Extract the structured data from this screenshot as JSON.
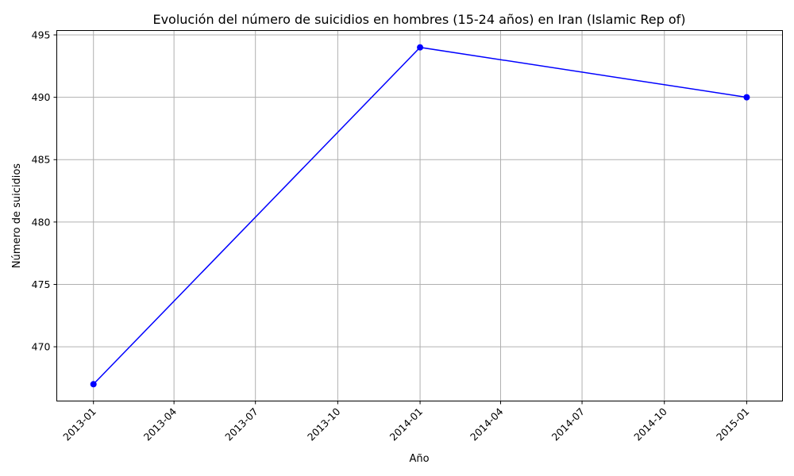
{
  "chart_data": {
    "type": "line",
    "title": "Evolución del número de suicidios en hombres (15-24 años) en Iran (Islamic Rep of)",
    "xlabel": "Año",
    "ylabel": "Número de suicidios",
    "x": [
      "2013-01-01",
      "2014-01-01",
      "2015-01-01"
    ],
    "series": [
      {
        "values": [
          467,
          494,
          490
        ],
        "color": "#0000ff",
        "marker": "circle"
      }
    ],
    "x_ticks": [
      "2013-01",
      "2013-04",
      "2013-07",
      "2013-10",
      "2014-01",
      "2014-04",
      "2014-07",
      "2014-10",
      "2015-01"
    ],
    "y_ticks": [
      470,
      475,
      480,
      485,
      490,
      495
    ],
    "xlim": [
      "2012-11-21",
      "2015-02-10"
    ],
    "ylim": [
      465.65,
      495.35
    ],
    "grid": true,
    "legend": "none"
  }
}
